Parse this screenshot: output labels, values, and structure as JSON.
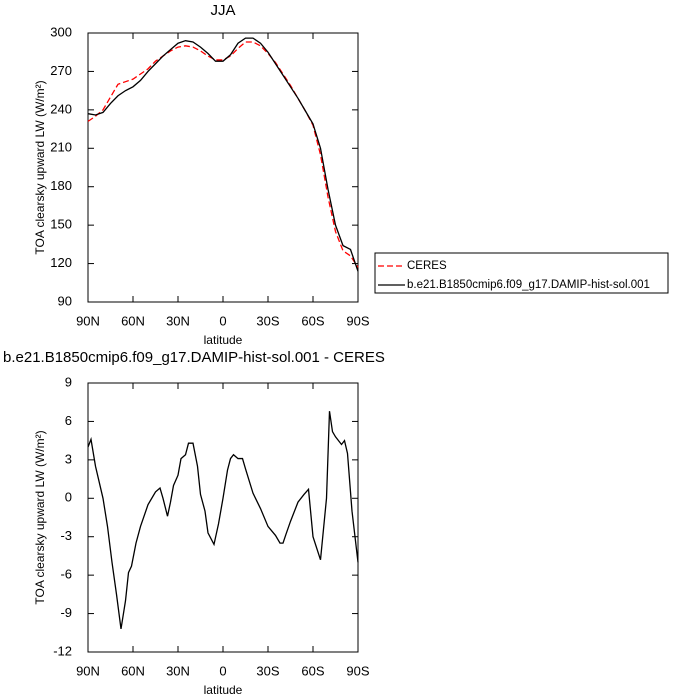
{
  "chart_data": [
    {
      "type": "line",
      "title": "JJA",
      "xlabel": "latitude",
      "ylabel": "TOA clearsky upward LW (W/m²)",
      "x": [
        90,
        85,
        80,
        75,
        70,
        65,
        60,
        55,
        50,
        45,
        40,
        35,
        30,
        25,
        20,
        15,
        10,
        5,
        0,
        -5,
        -10,
        -15,
        -20,
        -25,
        -30,
        -35,
        -40,
        -45,
        -50,
        -55,
        -60,
        -65,
        -70,
        -75,
        -80,
        -85,
        -90
      ],
      "series": [
        {
          "name": "CERES",
          "color": "#ff0000",
          "dashed": true,
          "values": [
            231,
            235,
            240,
            250,
            260,
            262,
            264,
            268,
            272,
            278,
            282,
            286,
            289,
            290,
            289,
            286,
            282,
            279,
            279,
            282,
            288,
            293,
            293,
            290,
            284,
            277,
            268,
            259,
            249,
            239,
            228,
            205,
            172,
            145,
            130,
            126,
            117
          ]
        },
        {
          "name": "b.e21.B1850cmip6.f09_g17.DAMIP-hist-sol.001",
          "color": "#000000",
          "dashed": false,
          "values": [
            237,
            236,
            238,
            245,
            251,
            255,
            258,
            263,
            270,
            276,
            282,
            287,
            292,
            294,
            293,
            289,
            284,
            278,
            278,
            283,
            292,
            296,
            296,
            292,
            285,
            276,
            267,
            258,
            249,
            239,
            229,
            210,
            178,
            150,
            134,
            131,
            114
          ]
        }
      ],
      "xlim": [
        90,
        -90
      ],
      "xticks": [
        {
          "value": 90,
          "label": "90N"
        },
        {
          "value": 60,
          "label": "60N"
        },
        {
          "value": 30,
          "label": "30N"
        },
        0,
        {
          "value": -30,
          "label": "30S"
        },
        {
          "value": -60,
          "label": "60S"
        },
        {
          "value": -90,
          "label": "90S"
        }
      ],
      "ylim": [
        90,
        300
      ],
      "yticks": [
        90,
        120,
        150,
        180,
        210,
        240,
        270,
        300
      ],
      "legend": "right"
    },
    {
      "type": "line",
      "title": "b.e21.B1850cmip6.f09_g17.DAMIP-hist-sol.001 - CERES",
      "xlabel": "latitude",
      "ylabel": "TOA clearsky upward LW (W/m²)",
      "x": [
        90,
        88,
        85,
        80,
        77,
        74,
        71,
        68,
        65,
        63,
        61,
        58,
        55,
        50,
        45,
        42,
        40,
        37,
        35,
        33,
        30,
        28,
        25,
        23,
        20,
        17,
        15,
        12,
        10,
        6,
        3,
        0,
        -3,
        -5,
        -7,
        -10,
        -13,
        -15,
        -20,
        -25,
        -30,
        -35,
        -38,
        -40,
        -42,
        -45,
        -50,
        -54,
        -57,
        -60,
        -65,
        -69,
        -71,
        -73,
        -75,
        -79,
        -81,
        -83,
        -86,
        -90
      ],
      "values": [
        4.0,
        4.6,
        2.5,
        0,
        -2.2,
        -5,
        -7.5,
        -10.2,
        -8,
        -5.8,
        -5.3,
        -3.5,
        -2.2,
        -0.5,
        0.5,
        0.8,
        0,
        -1.4,
        -0.3,
        1,
        1.8,
        3.1,
        3.4,
        4.3,
        4.3,
        2.5,
        0.3,
        -1,
        -2.7,
        -3.6,
        -2,
        0,
        2.2,
        3.1,
        3.4,
        3.1,
        3.1,
        2.3,
        0.4,
        -0.8,
        -2.2,
        -2.9,
        -3.5,
        -3.5,
        -2.8,
        -1.8,
        -0.3,
        0.3,
        0.7,
        -3,
        -4.8,
        0,
        6.8,
        5.2,
        4.8,
        4.2,
        4.5,
        3.5,
        -1,
        -5
      ],
      "color": "#000000",
      "xlim": [
        90,
        -90
      ],
      "xticks": [
        {
          "value": 90,
          "label": "90N"
        },
        {
          "value": 60,
          "label": "60N"
        },
        {
          "value": 30,
          "label": "30N"
        },
        0,
        {
          "value": -30,
          "label": "30S"
        },
        {
          "value": -60,
          "label": "60S"
        },
        {
          "value": -90,
          "label": "90S"
        }
      ],
      "ylim": [
        -12,
        9
      ],
      "yticks": [
        -12,
        -9,
        -6,
        -3,
        0,
        3,
        6,
        9
      ]
    }
  ]
}
